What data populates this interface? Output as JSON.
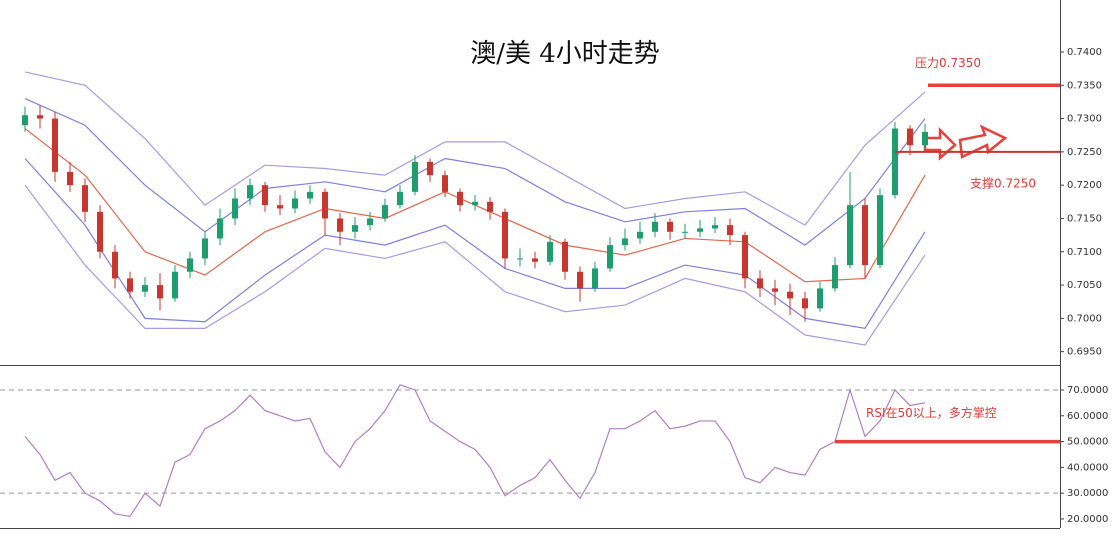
{
  "chart_data": [
    {
      "type": "candlestick",
      "title": "澳/美 4小时走势",
      "open": [
        0.729,
        0.7305,
        0.73,
        0.722,
        0.72,
        0.716,
        0.71,
        0.706,
        0.704,
        0.705,
        0.703,
        0.707,
        0.709,
        0.712,
        0.715,
        0.718,
        0.72,
        0.717,
        0.7165,
        0.718,
        0.719,
        0.715,
        0.713,
        0.714,
        0.715,
        0.717,
        0.719,
        0.7235,
        0.7215,
        0.719,
        0.717,
        0.7175,
        0.716,
        0.709,
        0.709,
        0.7085,
        0.7115,
        0.707,
        0.7045,
        0.7075,
        0.711,
        0.712,
        0.713,
        0.7145,
        0.713,
        0.713,
        0.7135,
        0.714,
        0.7125,
        0.706,
        0.7045,
        0.704,
        0.703,
        0.7015,
        0.7045,
        0.708,
        0.717,
        0.708,
        0.7185,
        0.7285,
        0.726
      ],
      "high": [
        0.7318,
        0.732,
        0.731,
        0.7235,
        0.721,
        0.717,
        0.711,
        0.707,
        0.7062,
        0.7068,
        0.708,
        0.71,
        0.713,
        0.7165,
        0.7195,
        0.721,
        0.7205,
        0.7185,
        0.7192,
        0.72,
        0.7195,
        0.7158,
        0.7152,
        0.716,
        0.718,
        0.72,
        0.7245,
        0.724,
        0.7222,
        0.7195,
        0.7185,
        0.7182,
        0.7165,
        0.7105,
        0.71,
        0.7125,
        0.712,
        0.7078,
        0.7085,
        0.7122,
        0.7135,
        0.7145,
        0.7158,
        0.715,
        0.7142,
        0.7148,
        0.7152,
        0.715,
        0.713,
        0.7072,
        0.7058,
        0.7052,
        0.704,
        0.7055,
        0.7092,
        0.722,
        0.718,
        0.7195,
        0.7295,
        0.729,
        0.7292
      ],
      "low": [
        0.728,
        0.7285,
        0.7205,
        0.719,
        0.7145,
        0.709,
        0.7045,
        0.703,
        0.7032,
        0.7012,
        0.7025,
        0.706,
        0.708,
        0.711,
        0.714,
        0.717,
        0.716,
        0.7155,
        0.7158,
        0.7172,
        0.7125,
        0.711,
        0.712,
        0.7132,
        0.7145,
        0.7165,
        0.7185,
        0.7205,
        0.7182,
        0.716,
        0.7162,
        0.7148,
        0.7075,
        0.7078,
        0.7075,
        0.708,
        0.7058,
        0.7025,
        0.704,
        0.707,
        0.7102,
        0.7112,
        0.7122,
        0.7118,
        0.712,
        0.7122,
        0.7128,
        0.711,
        0.7045,
        0.7032,
        0.702,
        0.7005,
        0.6995,
        0.701,
        0.704,
        0.7075,
        0.706,
        0.7075,
        0.718,
        0.7245,
        0.7252
      ],
      "close": [
        0.7305,
        0.73,
        0.722,
        0.72,
        0.716,
        0.71,
        0.706,
        0.704,
        0.705,
        0.703,
        0.707,
        0.709,
        0.712,
        0.715,
        0.718,
        0.72,
        0.717,
        0.7165,
        0.718,
        0.719,
        0.715,
        0.713,
        0.714,
        0.715,
        0.717,
        0.719,
        0.7235,
        0.7215,
        0.719,
        0.717,
        0.7175,
        0.716,
        0.709,
        0.709,
        0.7085,
        0.7115,
        0.707,
        0.7045,
        0.7075,
        0.711,
        0.712,
        0.713,
        0.7145,
        0.713,
        0.713,
        0.7135,
        0.714,
        0.7125,
        0.706,
        0.7045,
        0.704,
        0.703,
        0.7015,
        0.7045,
        0.708,
        0.717,
        0.708,
        0.7185,
        0.7285,
        0.726,
        0.728
      ],
      "up_color": "#1e9e6e",
      "down_color": "#c8362f",
      "bands": [
        {
          "color": "#a99be6",
          "x": [
            0,
            4,
            8,
            12,
            16,
            20,
            24,
            28,
            32,
            36,
            40,
            44,
            48,
            52,
            56,
            60
          ],
          "values": [
            0.737,
            0.735,
            0.727,
            0.717,
            0.723,
            0.7225,
            0.7215,
            0.7265,
            0.7265,
            0.7215,
            0.7165,
            0.718,
            0.719,
            0.714,
            0.726,
            0.734
          ]
        },
        {
          "color": "#7f7fe0",
          "x": [
            0,
            4,
            8,
            12,
            16,
            20,
            24,
            28,
            32,
            36,
            40,
            44,
            48,
            52,
            56,
            60
          ],
          "values": [
            0.733,
            0.729,
            0.72,
            0.713,
            0.7195,
            0.7205,
            0.719,
            0.724,
            0.7225,
            0.7175,
            0.7145,
            0.716,
            0.7165,
            0.711,
            0.718,
            0.73
          ]
        },
        {
          "color": "#e2674c",
          "x": [
            0,
            4,
            8,
            12,
            16,
            20,
            24,
            28,
            32,
            36,
            40,
            44,
            48,
            52,
            56,
            60
          ],
          "values": [
            0.7285,
            0.7215,
            0.71,
            0.7065,
            0.713,
            0.7165,
            0.715,
            0.719,
            0.715,
            0.711,
            0.7095,
            0.712,
            0.7115,
            0.7055,
            0.706,
            0.7215
          ]
        },
        {
          "color": "#7f7fe0",
          "x": [
            0,
            4,
            8,
            12,
            16,
            20,
            24,
            28,
            32,
            36,
            40,
            44,
            48,
            52,
            56,
            60
          ],
          "values": [
            0.724,
            0.714,
            0.7,
            0.6995,
            0.7065,
            0.7125,
            0.711,
            0.714,
            0.7075,
            0.7045,
            0.7045,
            0.708,
            0.7065,
            0.7,
            0.6985,
            0.713
          ]
        },
        {
          "color": "#a99be6",
          "x": [
            0,
            4,
            8,
            12,
            16,
            20,
            24,
            28,
            32,
            36,
            40,
            44,
            48,
            52,
            56,
            60
          ],
          "values": [
            0.72,
            0.708,
            0.6985,
            0.6985,
            0.704,
            0.7105,
            0.709,
            0.7115,
            0.704,
            0.701,
            0.702,
            0.706,
            0.704,
            0.6975,
            0.696,
            0.7095
          ]
        }
      ],
      "levels": [
        {
          "value": 0.735,
          "label": "压力0.7350",
          "color": "#e8413b"
        },
        {
          "value": 0.725,
          "label": "支撑0.7250",
          "color": "#c8362f"
        }
      ],
      "ylim": [
        0.693,
        0.7478
      ],
      "yticks": [
        {
          "value": 0.695,
          "label": "0.6950"
        },
        {
          "value": 0.7,
          "label": "0.7000"
        },
        {
          "value": 0.705,
          "label": "0.7050"
        },
        {
          "value": 0.71,
          "label": "0.7100"
        },
        {
          "value": 0.715,
          "label": "0.7150"
        },
        {
          "value": 0.72,
          "label": "0.7200"
        },
        {
          "value": 0.725,
          "label": "0.7250"
        },
        {
          "value": 0.73,
          "label": "0.7300"
        },
        {
          "value": 0.735,
          "label": "0.7350"
        },
        {
          "value": 0.74,
          "label": "0.7400"
        }
      ]
    },
    {
      "type": "line",
      "series": [
        {
          "color": "#b07fc4",
          "values": [
            52,
            45,
            35,
            38,
            30,
            27,
            22,
            21,
            30,
            25,
            42,
            45,
            55,
            58,
            62,
            68,
            62,
            60,
            58,
            59,
            46,
            40,
            50,
            55,
            62,
            72,
            70,
            58,
            54,
            50,
            47,
            40,
            29,
            33,
            36,
            43,
            35,
            28,
            38,
            55,
            55,
            58,
            62,
            55,
            56,
            58,
            58,
            50,
            36,
            34,
            40,
            38,
            37,
            47,
            50,
            70,
            52,
            58,
            70,
            64,
            65
          ]
        }
      ],
      "ref_lines": [
        30,
        70
      ],
      "levels": [
        {
          "value": 50,
          "label": "RSI在50以上，多方掌控",
          "color": "#e8413b"
        }
      ],
      "ylim": [
        16.5,
        79.3
      ],
      "yticks": [
        {
          "value": 20,
          "label": "20.0000"
        },
        {
          "value": 30,
          "label": "30.0000"
        },
        {
          "value": 40,
          "label": "40.0000"
        },
        {
          "value": 50,
          "label": "50.0000"
        },
        {
          "value": 60,
          "label": "60.0000"
        },
        {
          "value": 70,
          "label": "70.0000"
        }
      ]
    }
  ]
}
